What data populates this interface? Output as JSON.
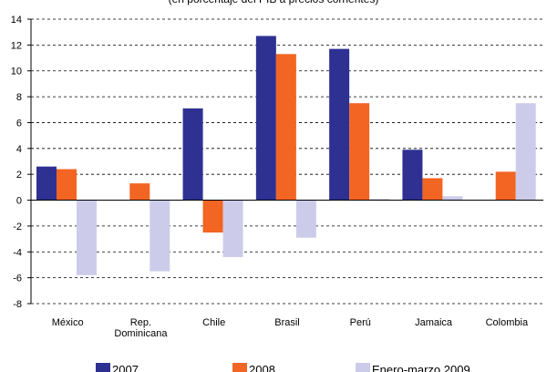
{
  "chart_data": {
    "type": "bar",
    "title": "(en porcentaje del PIB a precios corrientes)",
    "categories": [
      "México",
      "Rep.\nDominicana",
      "Chile",
      "Brasil",
      "Perú",
      "Jamaica",
      "Colombia"
    ],
    "series": [
      {
        "name": "2007",
        "color": "#2e3192",
        "values": [
          2.6,
          null,
          7.1,
          12.7,
          11.7,
          3.9,
          null
        ]
      },
      {
        "name": "2008",
        "color": "#f26522",
        "values": [
          2.4,
          1.3,
          -2.5,
          11.3,
          7.5,
          1.7,
          2.2
        ]
      },
      {
        "name": "Enero-marzo 2009",
        "color": "#ccccea",
        "values": [
          -5.8,
          -5.5,
          -4.4,
          -2.9,
          0.1,
          0.3,
          7.5
        ]
      }
    ],
    "ylim": [
      -8,
      14
    ],
    "yticks": [
      14,
      12,
      10,
      8,
      6,
      4,
      2,
      0,
      -2,
      -4,
      -6,
      -8
    ],
    "grid": true,
    "legend_position": "bottom"
  }
}
